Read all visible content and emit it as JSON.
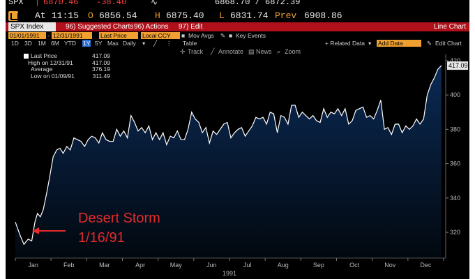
{
  "ticker": {
    "symbol": "SPX",
    "separator": "|",
    "last": "6870.46",
    "change": "-38.40",
    "range": "6868.70 / 6872.39"
  },
  "quote": {
    "at_label": "At",
    "time": "11:15",
    "open_label": "O",
    "open": "6856.54",
    "high_label": "H",
    "high": "6875.40",
    "low_label": "L",
    "low": "6831.74",
    "prev_label": "Prev",
    "prev": "6908.86"
  },
  "title_bar": {
    "security": "SPX Index",
    "suggested": "96) Suggested Charts",
    "actions": "96) Actions",
    "edit": "97) Edit",
    "view": "Line Chart"
  },
  "controls": {
    "start_date": "01/01/1991",
    "end_date": "12/31/1991",
    "field": "Last Price",
    "currency": "Local CCY",
    "mov_avgs": "Mov Avgs",
    "key_events": "Key Events"
  },
  "periods": [
    "1D",
    "3D",
    "1M",
    "6M",
    "YTD",
    "1Y",
    "5Y",
    "Max"
  ],
  "selected_period": "1Y",
  "frequency": "Daily",
  "table_label": "Table",
  "related_data": "+ Related Data",
  "add_data_placeholder": "Add Data",
  "edit_chart": "Edit Chart",
  "chart_tools": [
    "Track",
    "Annotate",
    "News",
    "Zoom"
  ],
  "legend": {
    "rows": [
      {
        "label": "Last Price",
        "value": "417.09"
      },
      {
        "label": "High on 12/31/91",
        "value": "417.09"
      },
      {
        "label": "Average",
        "value": "376.19"
      },
      {
        "label": "Low on 01/09/91",
        "value": "311.49"
      }
    ]
  },
  "annotation": {
    "line1": "Desert Storm",
    "line2": "1/16/91",
    "color": "#e52b2b"
  },
  "last_value_label": "417.09",
  "colors": {
    "line": "#ffffff",
    "fill_top": "#0b2a55",
    "fill_bottom": "#02080f",
    "accent": "#f0a030",
    "title_bar": "#b0101a"
  },
  "chart_data": {
    "type": "area",
    "title": "",
    "xlabel": "1991",
    "ylabel": "",
    "ylim": [
      305,
      422
    ],
    "y_ticks": [
      320,
      340,
      360,
      380,
      400,
      420
    ],
    "x_ticks": [
      {
        "label": "Jan",
        "x": 0.5
      },
      {
        "label": "Feb",
        "x": 1.5
      },
      {
        "label": "Mar",
        "x": 2.5
      },
      {
        "label": "Apr",
        "x": 3.5
      },
      {
        "label": "May",
        "x": 4.5
      },
      {
        "label": "Jun",
        "x": 5.5
      },
      {
        "label": "Jul",
        "x": 6.5
      },
      {
        "label": "Aug",
        "x": 7.5
      },
      {
        "label": "Sep",
        "x": 8.5
      },
      {
        "label": "Oct",
        "x": 9.5
      },
      {
        "label": "Nov",
        "x": 10.5
      },
      {
        "label": "Dec",
        "x": 11.5
      }
    ],
    "xlim": [
      0,
      12
    ],
    "series": [
      {
        "name": "Last Price",
        "x": [
          0,
          0.12,
          0.24,
          0.36,
          0.46,
          0.55,
          0.62,
          0.7,
          0.78,
          0.88,
          0.96,
          1.06,
          1.16,
          1.25,
          1.34,
          1.44,
          1.54,
          1.64,
          1.74,
          1.84,
          1.94,
          2.04,
          2.14,
          2.24,
          2.34,
          2.44,
          2.54,
          2.64,
          2.74,
          2.84,
          2.94,
          3.04,
          3.14,
          3.24,
          3.34,
          3.44,
          3.54,
          3.64,
          3.74,
          3.84,
          3.94,
          4.04,
          4.14,
          4.24,
          4.34,
          4.44,
          4.54,
          4.64,
          4.74,
          4.84,
          4.94,
          5.04,
          5.14,
          5.24,
          5.34,
          5.44,
          5.54,
          5.64,
          5.74,
          5.84,
          5.94,
          6.04,
          6.14,
          6.24,
          6.34,
          6.44,
          6.54,
          6.64,
          6.74,
          6.84,
          6.94,
          7.04,
          7.14,
          7.24,
          7.34,
          7.44,
          7.54,
          7.64,
          7.74,
          7.84,
          7.94,
          8.04,
          8.14,
          8.24,
          8.34,
          8.44,
          8.54,
          8.64,
          8.74,
          8.84,
          8.94,
          9.04,
          9.14,
          9.24,
          9.34,
          9.44,
          9.54,
          9.64,
          9.74,
          9.84,
          9.94,
          10.04,
          10.14,
          10.24,
          10.34,
          10.44,
          10.54,
          10.64,
          10.74,
          10.84,
          10.94,
          11.04,
          11.14,
          11.24,
          11.34,
          11.44,
          11.54,
          11.64,
          11.74,
          11.84,
          11.94
        ],
        "values": [
          326,
          319,
          313,
          316,
          315,
          326,
          331,
          329,
          333,
          343,
          352,
          364,
          368,
          369,
          366,
          370,
          368,
          375,
          374,
          373,
          370,
          374,
          376,
          375,
          372,
          378,
          374,
          373,
          373,
          380,
          376,
          379,
          375,
          388,
          384,
          379,
          381,
          378,
          382,
          374,
          378,
          374,
          378,
          371,
          376,
          375,
          379,
          374,
          374,
          380,
          390,
          386,
          384,
          378,
          381,
          372,
          379,
          377,
          380,
          383,
          384,
          375,
          378,
          380,
          381,
          376,
          379,
          382,
          387,
          386,
          387,
          383,
          390,
          389,
          378,
          388,
          387,
          383,
          394,
          394,
          387,
          390,
          388,
          386,
          388,
          385,
          384,
          392,
          387,
          390,
          389,
          392,
          388,
          392,
          383,
          385,
          391,
          392,
          393,
          387,
          388,
          386,
          391,
          397,
          380,
          381,
          377,
          383,
          383,
          378,
          382,
          380,
          382,
          386,
          383,
          386,
          400,
          406,
          410,
          415,
          417.09
        ]
      }
    ],
    "grid": false,
    "legend": "top-left"
  }
}
